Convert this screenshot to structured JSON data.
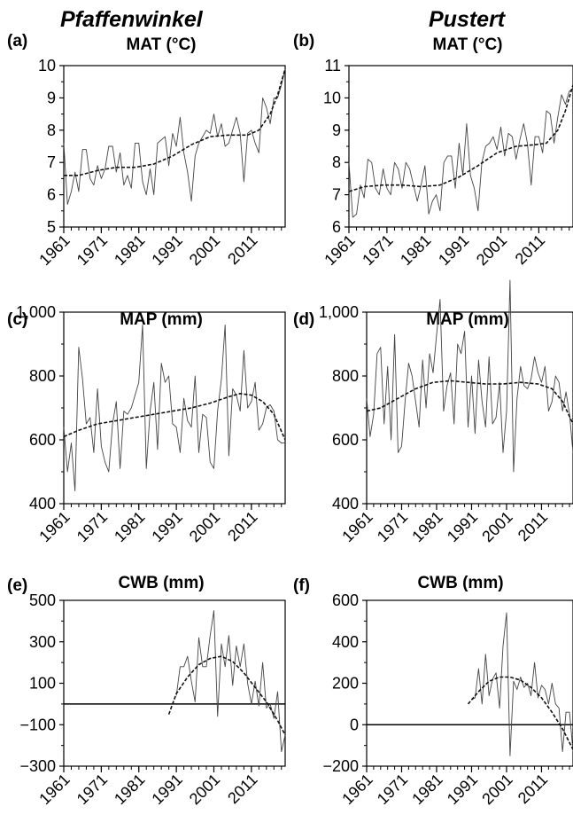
{
  "figure": {
    "site_left": "Pfaffenwinkel",
    "site_right": "Pustert"
  },
  "chart_data": [
    {
      "id": "a",
      "panel_label": "(a)",
      "title": "MAT (°C)",
      "type": "line",
      "ylim": [
        5,
        10
      ],
      "yticks": [
        5,
        6,
        7,
        8,
        9,
        10
      ],
      "ytick_labels": [
        "5",
        "6",
        "7",
        "8",
        "9",
        "10"
      ],
      "xlim": [
        1961,
        2020
      ],
      "xticks": [
        1961,
        1971,
        1981,
        1991,
        2001,
        2011
      ],
      "series": [
        {
          "style": "solid",
          "x": [
            1961,
            1962,
            1963,
            1964,
            1965,
            1966,
            1967,
            1968,
            1969,
            1970,
            1971,
            1972,
            1973,
            1974,
            1975,
            1976,
            1977,
            1978,
            1979,
            1980,
            1981,
            1982,
            1983,
            1984,
            1985,
            1986,
            1987,
            1988,
            1989,
            1990,
            1991,
            1992,
            1993,
            1994,
            1995,
            1996,
            1997,
            1998,
            1999,
            2000,
            2001,
            2002,
            2003,
            2004,
            2005,
            2006,
            2007,
            2008,
            2009,
            2010,
            2011,
            2012,
            2013,
            2014,
            2015,
            2016,
            2017,
            2018,
            2019,
            2020
          ],
          "y": [
            7.6,
            5.7,
            6.1,
            6.7,
            6.1,
            7.4,
            7.4,
            6.5,
            6.3,
            6.9,
            6.5,
            6.8,
            7.5,
            7.5,
            6.7,
            7.3,
            6.3,
            6.6,
            6.2,
            7.6,
            7.6,
            6.4,
            6.0,
            6.8,
            6.0,
            7.6,
            7.7,
            7.8,
            6.9,
            7.9,
            7.5,
            8.4,
            7.3,
            6.7,
            5.8,
            7.2,
            7.6,
            7.8,
            8.0,
            7.9,
            8.5,
            7.8,
            8.2,
            7.5,
            7.6,
            8.0,
            8.4,
            7.9,
            6.4,
            7.9,
            8.0,
            7.6,
            7.3,
            9.0,
            8.7,
            8.2,
            9.0,
            9.0,
            9.4,
            9.9
          ]
        },
        {
          "style": "dashed",
          "x": [
            1961,
            1965,
            1970,
            1975,
            1980,
            1985,
            1990,
            1995,
            2000,
            2005,
            2010,
            2013,
            2016,
            2018,
            2020
          ],
          "y": [
            6.6,
            6.6,
            6.75,
            6.85,
            6.85,
            6.95,
            7.2,
            7.55,
            7.8,
            7.85,
            7.85,
            8.0,
            8.5,
            9.1,
            9.9
          ]
        }
      ]
    },
    {
      "id": "b",
      "panel_label": "(b)",
      "title": "MAT (°C)",
      "type": "line",
      "ylim": [
        6,
        11
      ],
      "yticks": [
        6,
        7,
        8,
        9,
        10,
        11
      ],
      "ytick_labels": [
        "6",
        "7",
        "8",
        "9",
        "10",
        "11"
      ],
      "xlim": [
        1961,
        2020
      ],
      "xticks": [
        1961,
        1971,
        1981,
        1991,
        2001,
        2011
      ],
      "series": [
        {
          "style": "solid",
          "x": [
            1961,
            1962,
            1963,
            1964,
            1965,
            1966,
            1967,
            1968,
            1969,
            1970,
            1971,
            1972,
            1973,
            1974,
            1975,
            1976,
            1977,
            1978,
            1979,
            1980,
            1981,
            1982,
            1983,
            1984,
            1985,
            1986,
            1987,
            1988,
            1989,
            1990,
            1991,
            1992,
            1993,
            1994,
            1995,
            1996,
            1997,
            1998,
            1999,
            2000,
            2001,
            2002,
            2003,
            2004,
            2005,
            2006,
            2007,
            2008,
            2009,
            2010,
            2011,
            2012,
            2013,
            2014,
            2015,
            2016,
            2017,
            2018,
            2019,
            2020
          ],
          "y": [
            8.0,
            6.3,
            6.4,
            7.3,
            6.9,
            8.1,
            8.0,
            7.2,
            7.0,
            7.8,
            7.2,
            7.0,
            8.0,
            7.8,
            7.2,
            8.0,
            7.8,
            7.3,
            6.8,
            7.3,
            7.9,
            6.4,
            6.8,
            7.0,
            6.5,
            8.0,
            8.2,
            8.2,
            7.2,
            8.6,
            7.6,
            9.2,
            7.6,
            7.2,
            6.5,
            8.0,
            8.5,
            8.6,
            8.8,
            8.4,
            9.1,
            8.2,
            8.9,
            8.8,
            8.1,
            8.7,
            9.2,
            8.6,
            7.3,
            8.8,
            8.8,
            8.3,
            9.6,
            9.5,
            8.6,
            9.4,
            10.1,
            9.8,
            10.2,
            10.3
          ]
        },
        {
          "style": "dashed",
          "x": [
            1961,
            1965,
            1970,
            1975,
            1980,
            1985,
            1990,
            1995,
            2000,
            2005,
            2010,
            2013,
            2016,
            2018,
            2020
          ],
          "y": [
            7.1,
            7.25,
            7.3,
            7.3,
            7.25,
            7.3,
            7.55,
            7.9,
            8.3,
            8.5,
            8.55,
            8.6,
            9.0,
            9.6,
            10.4
          ]
        }
      ]
    },
    {
      "id": "c",
      "panel_label": "(c)",
      "title": "MAP (mm)",
      "type": "line",
      "ylim": [
        400,
        1000
      ],
      "yticks": [
        400,
        600,
        800,
        1000
      ],
      "ytick_labels": [
        "400",
        "600",
        "800",
        "1,000"
      ],
      "xlim": [
        1961,
        2020
      ],
      "xticks": [
        1961,
        1971,
        1981,
        1991,
        2001,
        2011
      ],
      "series": [
        {
          "style": "solid",
          "x": [
            1961,
            1962,
            1963,
            1964,
            1965,
            1966,
            1967,
            1968,
            1969,
            1970,
            1971,
            1972,
            1973,
            1974,
            1975,
            1976,
            1977,
            1978,
            1979,
            1980,
            1981,
            1982,
            1983,
            1984,
            1985,
            1986,
            1987,
            1988,
            1989,
            1990,
            1991,
            1992,
            1993,
            1994,
            1995,
            1996,
            1997,
            1998,
            1999,
            2000,
            2001,
            2002,
            2003,
            2004,
            2005,
            2006,
            2007,
            2008,
            2009,
            2010,
            2011,
            2012,
            2013,
            2014,
            2015,
            2016,
            2017,
            2018,
            2019,
            2020
          ],
          "y": [
            640,
            500,
            590,
            440,
            890,
            790,
            650,
            670,
            560,
            760,
            580,
            530,
            500,
            650,
            720,
            510,
            690,
            680,
            700,
            740,
            780,
            960,
            510,
            690,
            780,
            570,
            840,
            780,
            800,
            650,
            640,
            560,
            730,
            660,
            640,
            800,
            560,
            680,
            670,
            530,
            510,
            690,
            790,
            960,
            550,
            760,
            740,
            690,
            880,
            700,
            720,
            780,
            630,
            650,
            700,
            710,
            690,
            600,
            590,
            590
          ]
        },
        {
          "style": "dashed",
          "x": [
            1961,
            1965,
            1970,
            1975,
            1980,
            1985,
            1990,
            1995,
            2000,
            2005,
            2008,
            2011,
            2014,
            2017,
            2020
          ],
          "y": [
            610,
            630,
            650,
            660,
            670,
            680,
            690,
            700,
            715,
            735,
            745,
            740,
            720,
            680,
            600
          ]
        }
      ]
    },
    {
      "id": "d",
      "panel_label": "(d)",
      "title": "MAP (mm)",
      "type": "line",
      "ylim": [
        400,
        1000
      ],
      "yticks": [
        400,
        600,
        800,
        1000
      ],
      "ytick_labels": [
        "400",
        "600",
        "800",
        "1,000"
      ],
      "xlim": [
        1961,
        2020
      ],
      "xticks": [
        1961,
        1971,
        1981,
        1991,
        2001,
        2011
      ],
      "series": [
        {
          "style": "solid",
          "x": [
            1961,
            1962,
            1963,
            1964,
            1965,
            1966,
            1967,
            1968,
            1969,
            1970,
            1971,
            1972,
            1973,
            1974,
            1975,
            1976,
            1977,
            1978,
            1979,
            1980,
            1981,
            1982,
            1983,
            1984,
            1985,
            1986,
            1987,
            1988,
            1989,
            1990,
            1991,
            1992,
            1993,
            1994,
            1995,
            1996,
            1997,
            1998,
            1999,
            2000,
            2001,
            2002,
            2003,
            2004,
            2005,
            2006,
            2007,
            2008,
            2009,
            2010,
            2011,
            2012,
            2013,
            2014,
            2015,
            2016,
            2017,
            2018,
            2019,
            2020
          ],
          "y": [
            730,
            610,
            680,
            870,
            890,
            650,
            830,
            600,
            930,
            560,
            580,
            720,
            840,
            800,
            720,
            640,
            850,
            700,
            870,
            810,
            930,
            1040,
            690,
            770,
            810,
            650,
            900,
            870,
            940,
            640,
            800,
            620,
            850,
            720,
            640,
            860,
            650,
            670,
            780,
            560,
            690,
            1100,
            500,
            730,
            830,
            770,
            760,
            790,
            860,
            810,
            780,
            830,
            690,
            720,
            800,
            780,
            690,
            750,
            680,
            560
          ]
        },
        {
          "style": "dashed",
          "x": [
            1961,
            1965,
            1970,
            1975,
            1980,
            1985,
            1990,
            1995,
            2000,
            2005,
            2010,
            2014,
            2017,
            2020
          ],
          "y": [
            690,
            700,
            730,
            760,
            780,
            785,
            780,
            775,
            775,
            780,
            775,
            760,
            720,
            650
          ]
        }
      ]
    },
    {
      "id": "e",
      "panel_label": "(e)",
      "title": "CWB (mm)",
      "type": "line",
      "ylim": [
        -300,
        500
      ],
      "yticks": [
        -300,
        -100,
        100,
        300,
        500
      ],
      "ytick_labels": [
        "−300",
        "−100",
        "100",
        "300",
        "500"
      ],
      "xlim": [
        1961,
        2020
      ],
      "xticks": [
        1961,
        1971,
        1981,
        1991,
        2001,
        2011
      ],
      "hline": 0,
      "series": [
        {
          "style": "solid",
          "x": [
            1991,
            1992,
            1993,
            1994,
            1995,
            1996,
            1997,
            1998,
            1999,
            2000,
            2001,
            2002,
            2003,
            2004,
            2005,
            2006,
            2007,
            2008,
            2009,
            2010,
            2011,
            2012,
            2013,
            2014,
            2015,
            2016,
            2017,
            2018,
            2019,
            2020
          ],
          "y": [
            40,
            180,
            180,
            230,
            110,
            10,
            320,
            180,
            180,
            330,
            450,
            -60,
            290,
            180,
            330,
            90,
            280,
            180,
            290,
            100,
            0,
            110,
            -10,
            200,
            -20,
            0,
            -70,
            60,
            -230,
            -150
          ]
        },
        {
          "style": "dashed",
          "x": [
            1989,
            1991,
            1994,
            1997,
            2000,
            2003,
            2006,
            2009,
            2012,
            2015,
            2018,
            2020
          ],
          "y": [
            -50,
            50,
            130,
            190,
            220,
            230,
            205,
            150,
            80,
            10,
            -80,
            -150
          ]
        }
      ]
    },
    {
      "id": "f",
      "panel_label": "(f)",
      "title": "CWB (mm)",
      "type": "line",
      "ylim": [
        -200,
        600
      ],
      "yticks": [
        -200,
        0,
        200,
        400,
        600
      ],
      "ytick_labels": [
        "−200",
        "0",
        "200",
        "400",
        "600"
      ],
      "xlim": [
        1961,
        2020
      ],
      "xticks": [
        1961,
        1971,
        1981,
        1991,
        2001,
        2011
      ],
      "hline": 0,
      "series": [
        {
          "style": "solid",
          "x": [
            1991,
            1992,
            1993,
            1994,
            1995,
            1996,
            1997,
            1998,
            1999,
            2000,
            2001,
            2002,
            2003,
            2004,
            2005,
            2006,
            2007,
            2008,
            2009,
            2010,
            2011,
            2012,
            2013,
            2014,
            2015,
            2016,
            2017,
            2018,
            2019,
            2020
          ],
          "y": [
            120,
            130,
            270,
            100,
            340,
            140,
            220,
            250,
            80,
            380,
            540,
            -150,
            210,
            170,
            230,
            180,
            200,
            140,
            300,
            130,
            190,
            170,
            100,
            200,
            100,
            80,
            -130,
            60,
            60,
            -130
          ]
        },
        {
          "style": "dashed",
          "x": [
            1990,
            1993,
            1996,
            1999,
            2002,
            2005,
            2008,
            2011,
            2014,
            2017,
            2020
          ],
          "y": [
            100,
            160,
            210,
            230,
            230,
            215,
            180,
            130,
            60,
            -20,
            -120
          ]
        }
      ]
    }
  ]
}
